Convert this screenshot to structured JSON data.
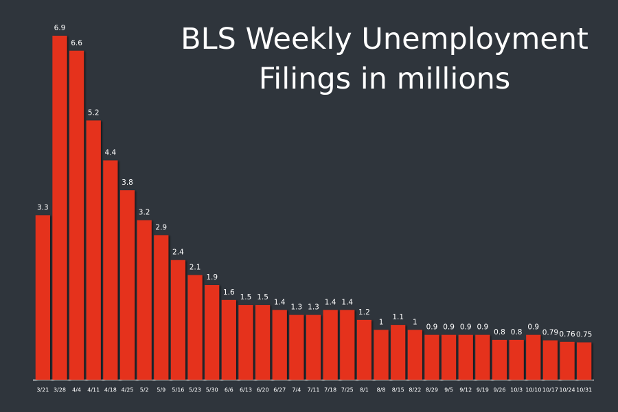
{
  "chart_data": {
    "type": "bar",
    "title": "BLS Weekly Unemployment Filings in millions",
    "categories": [
      "3/21",
      "3/28",
      "4/4",
      "4/11",
      "4/18",
      "4/25",
      "5/2",
      "5/9",
      "5/16",
      "5/23",
      "5/30",
      "6/6",
      "6/13",
      "6/20",
      "6/27",
      "7/4",
      "7/11",
      "7/18",
      "7/25",
      "8/1",
      "8/8",
      "8/15",
      "8/22",
      "8/29",
      "9/5",
      "9/12",
      "9/19",
      "9/26",
      "10/3",
      "10/10",
      "10/17",
      "10/24",
      "10/31"
    ],
    "values": [
      3.3,
      6.9,
      6.6,
      5.2,
      4.4,
      3.8,
      3.2,
      2.9,
      2.4,
      2.1,
      1.9,
      1.6,
      1.5,
      1.5,
      1.4,
      1.3,
      1.3,
      1.4,
      1.4,
      1.2,
      1,
      1.1,
      1,
      0.9,
      0.9,
      0.9,
      0.9,
      0.8,
      0.8,
      0.9,
      0.79,
      0.76,
      0.75
    ],
    "color": "#e5321f"
  }
}
